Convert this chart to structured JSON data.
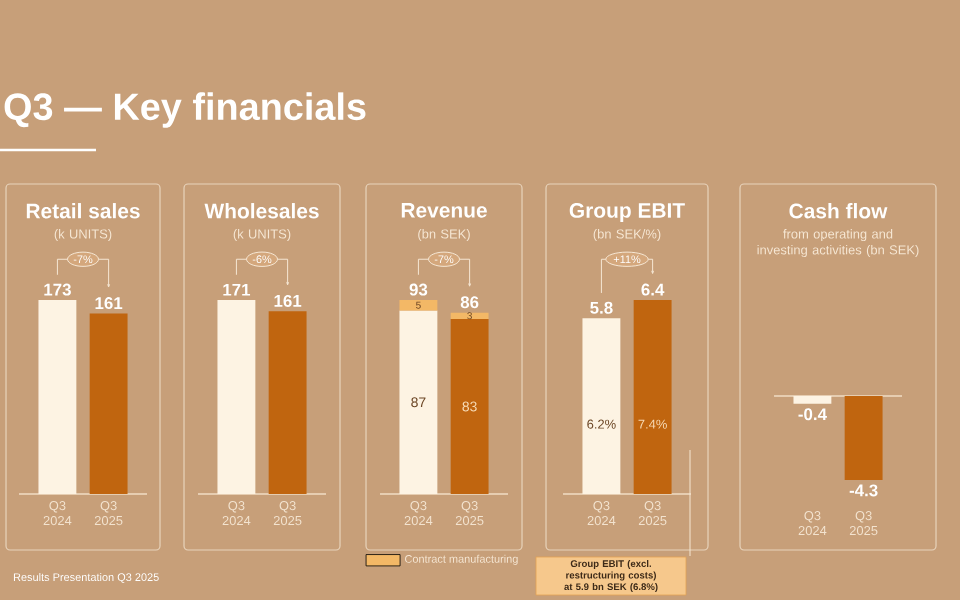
{
  "chart_data": [
    {
      "type": "other",
      "title": "Q3 — Key financials",
      "annotations": [
        "Results Presentation Q3 2025"
      ]
    },
    {
      "type": "bar",
      "title": "Retail sales",
      "subtitle": "(k UNITS)",
      "categories": [
        "Q3 2024",
        "Q3 2025"
      ],
      "values": [
        173,
        161
      ],
      "colors": [
        "#fdf3e3",
        "#c0650f"
      ],
      "data_labels": true,
      "annotations": [
        "-7%"
      ]
    },
    {
      "type": "bar",
      "title": "Wholesales",
      "subtitle": "(k UNITS)",
      "categories": [
        "Q3 2024",
        "Q3 2025"
      ],
      "values": [
        171,
        161
      ],
      "colors": [
        "#fdf3e3",
        "#c0650f"
      ],
      "data_labels": true,
      "annotations": [
        "-6%"
      ]
    },
    {
      "type": "bar",
      "title": "Revenue",
      "subtitle": "(bn SEK)",
      "categories": [
        "Q3 2024",
        "Q3 2025"
      ],
      "stacked": true,
      "series": [
        {
          "colors": [
            "#fdf3e3",
            "#c0650f"
          ],
          "values": [
            87,
            83
          ]
        },
        {
          "name": "Contract manufacturing",
          "color": "#f3b866",
          "values": [
            5,
            3
          ]
        }
      ],
      "data_labels": true,
      "totals": [
        "93",
        "86"
      ],
      "legend": "bottom",
      "annotations": [
        "-7%"
      ]
    },
    {
      "type": "bar",
      "title": "Group EBIT",
      "subtitle": "(bn SEK/%)",
      "categories": [
        "Q3 2024",
        "Q3 2025"
      ],
      "values": [
        5.8,
        6.4
      ],
      "colors": [
        "#fdf3e3",
        "#c0650f"
      ],
      "data_labels": true,
      "annotations": [
        "+11%",
        "6.2%",
        "7.4%",
        "Group EBIT (excl. restructuring costs) at 5.9 bn SEK (6.8%)"
      ]
    },
    {
      "type": "bar",
      "title": "Cash flow",
      "subtitle": "from operating and investing activities (bn SEK)",
      "categories": [
        "Q3 2024",
        "Q3 2025"
      ],
      "values": [
        -0.4,
        -4.3
      ],
      "colors": [
        "#fdf3e3",
        "#c0650f"
      ],
      "data_labels": true
    }
  ]
}
